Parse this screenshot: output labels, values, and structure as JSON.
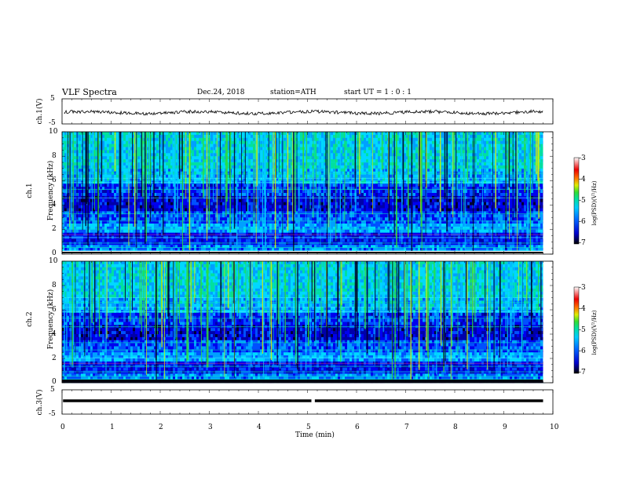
{
  "header": {
    "title": "VLF  Spectra",
    "date": "Dec.24, 2018",
    "station": "station=ATH",
    "start": "start  UT  =   1 : 0  : 1"
  },
  "colorbar": {
    "ticks": [
      "-3",
      "-4",
      "-5",
      "-6",
      "-7"
    ],
    "label": "log(PSD)(V²/Hz)",
    "colors": [
      "#000000",
      "#0000cc",
      "#0066ff",
      "#00ccff",
      "#00e0a0",
      "#33dd33",
      "#ddee00",
      "#ff7700",
      "#ee0000",
      "#ffffff"
    ]
  },
  "chart_data": [
    {
      "type": "line",
      "name": "ch1-waveform",
      "ylabel": "ch.1(V)",
      "ylim": [
        -5,
        5
      ],
      "yticks": [
        "5",
        "-5"
      ],
      "xlim": [
        0,
        10
      ],
      "baseline": -0.3,
      "description_color": "#000000"
    },
    {
      "type": "heatmap",
      "name": "ch1-spectrogram",
      "ylabel_top": "ch.1",
      "ylabel": "Frequency (kHz)",
      "ylim": [
        0,
        10
      ],
      "yticks": [
        "10",
        "8",
        "6",
        "4",
        "2",
        "0"
      ],
      "xlim": [
        0,
        9.8
      ],
      "color_range_log": [
        -7,
        -3
      ]
    },
    {
      "type": "heatmap",
      "name": "ch2-spectrogram",
      "ylabel_top": "ch.2",
      "ylabel": "Frequency (kHz)",
      "ylim": [
        0,
        10
      ],
      "yticks": [
        "10",
        "8",
        "6",
        "4",
        "2",
        "0"
      ],
      "xlim": [
        0,
        9.8
      ],
      "color_range_log": [
        -7,
        -3
      ]
    },
    {
      "type": "line",
      "name": "ch3-waveform",
      "ylabel": "ch.3(V)",
      "ylim": [
        -5,
        5
      ],
      "yticks": [
        "5",
        "-5"
      ],
      "xlim": [
        0,
        10
      ],
      "baseline": -1.8,
      "gap_at": 5.1
    }
  ],
  "xaxis": {
    "label": "Time  (min)",
    "ticks": [
      "0",
      "1",
      "2",
      "3",
      "4",
      "5",
      "6",
      "7",
      "8",
      "9",
      "10"
    ]
  }
}
